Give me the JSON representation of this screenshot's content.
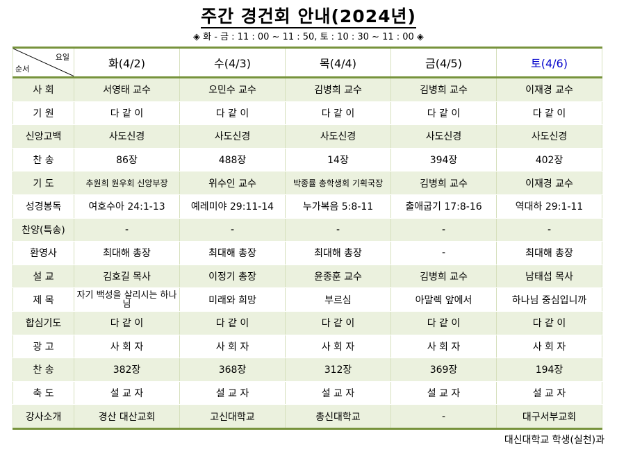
{
  "title": "주간 경건회 안내(2024년)",
  "subtitle": "◈ 화 - 금 : 11 : 00 ~ 11 : 50, 토 : 10 : 30 ~ 11 : 00 ◈",
  "corner": {
    "top": "요일",
    "bottom": "순서"
  },
  "days": [
    "화(4/2)",
    "수(4/3)",
    "목(4/4)",
    "금(4/5)",
    "토(4/6)"
  ],
  "saturday_color": "#0000cc",
  "accent": "#77933c",
  "rows": [
    {
      "label": "사 회",
      "cells": [
        "서영태 교수",
        "오민수 교수",
        "김병희 교수",
        "김병희 교수",
        "이재경 교수"
      ]
    },
    {
      "label": "기 원",
      "cells": [
        "다 같 이",
        "다 같 이",
        "다 같 이",
        "다 같 이",
        "다 같 이"
      ]
    },
    {
      "label": "신앙고백",
      "cells": [
        "사도신경",
        "사도신경",
        "사도신경",
        "사도신경",
        "사도신경"
      ]
    },
    {
      "label": "찬 송",
      "cells": [
        "86장",
        "488장",
        "14장",
        "394장",
        "402장"
      ]
    },
    {
      "label": "기 도",
      "cells": [
        "추원희 원우회 신앙부장",
        "위수인 교수",
        "박종률 총학생회 기획국장",
        "김병희 교수",
        "이재경 교수"
      ]
    },
    {
      "label": "성경봉독",
      "cells": [
        "여호수아 24:1-13",
        "예레미야 29:11-14",
        "누가복음 5:8-11",
        "출애굽기 17:8-16",
        "역대하 29:1-11"
      ]
    },
    {
      "label": "찬양(특송)",
      "cells": [
        "-",
        "-",
        "-",
        "-",
        "-"
      ]
    },
    {
      "label": "환영사",
      "cells": [
        "최대해 총장",
        "최대해 총장",
        "최대해 총장",
        "-",
        "최대해 총장"
      ]
    },
    {
      "label": "설 교",
      "cells": [
        "김호길 목사",
        "이정기 총장",
        "윤종훈 교수",
        "김병희 교수",
        "남태섭 목사"
      ]
    },
    {
      "label": "제 목",
      "cells": [
        "자기 백성을 살리시는 하나님",
        "미래와 희망",
        "부르심",
        "아말렉 앞에서",
        "하나님 중심입니까"
      ]
    },
    {
      "label": "합심기도",
      "cells": [
        "다 같 이",
        "다 같 이",
        "다 같 이",
        "다 같 이",
        "다 같 이"
      ]
    },
    {
      "label": "광 고",
      "cells": [
        "사 회 자",
        "사 회 자",
        "사 회 자",
        "사 회 자",
        "사 회 자"
      ]
    },
    {
      "label": "찬 송",
      "cells": [
        "382장",
        "368장",
        "312장",
        "369장",
        "194장"
      ]
    },
    {
      "label": "축 도",
      "cells": [
        "설 교 자",
        "설 교 자",
        "설 교 자",
        "설 교 자",
        "설 교 자"
      ]
    },
    {
      "label": "강사소개",
      "cells": [
        "경산 대산교회",
        "고신대학교",
        "총신대학교",
        "-",
        "대구서부교회"
      ]
    }
  ],
  "footer": "대신대학교 학생(실천)과"
}
